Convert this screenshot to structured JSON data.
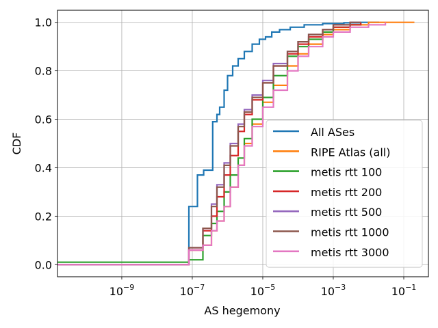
{
  "chart_data": {
    "type": "line",
    "title": "",
    "xlabel": "AS hegemony",
    "ylabel": "CDF",
    "x_scale": "log",
    "xlim": [
      1.5e-11,
      0.5
    ],
    "ylim": [
      -0.05,
      1.05
    ],
    "grid": true,
    "legend_position": "lower-right",
    "x_ticks": [
      {
        "value": 1e-09,
        "base": "10",
        "exp": "−9"
      },
      {
        "value": 1e-07,
        "base": "10",
        "exp": "−7"
      },
      {
        "value": 1e-05,
        "base": "10",
        "exp": "−5"
      },
      {
        "value": 0.001,
        "base": "10",
        "exp": "−3"
      },
      {
        "value": 0.1,
        "base": "10",
        "exp": "−1"
      }
    ],
    "y_ticks": [
      {
        "value": 0.0,
        "label": "0.0"
      },
      {
        "value": 0.2,
        "label": "0.2"
      },
      {
        "value": 0.4,
        "label": "0.4"
      },
      {
        "value": 0.6,
        "label": "0.6"
      },
      {
        "value": 0.8,
        "label": "0.8"
      },
      {
        "value": 1.0,
        "label": "1.0"
      }
    ],
    "series": [
      {
        "name": "All ASes",
        "color": "#1f77b4",
        "x": [
          1.5e-11,
          8e-08,
          8e-08,
          1.4e-07,
          1.4e-07,
          2.1e-07,
          2.1e-07,
          3.8e-07,
          3.8e-07,
          5e-07,
          6e-07,
          8e-07,
          1e-06,
          1.4e-06,
          2e-06,
          3e-06,
          5e-06,
          8e-06,
          1.2e-05,
          1.8e-05,
          3e-05,
          6e-05,
          0.00015,
          0.0005,
          0.002,
          0.006,
          0.02
        ],
        "y": [
          0.0,
          0.0,
          0.24,
          0.24,
          0.37,
          0.37,
          0.39,
          0.39,
          0.59,
          0.62,
          0.65,
          0.72,
          0.78,
          0.82,
          0.85,
          0.88,
          0.91,
          0.93,
          0.94,
          0.96,
          0.97,
          0.98,
          0.99,
          0.995,
          0.998,
          1.0,
          1.0
        ]
      },
      {
        "name": "RIPE Atlas (all)",
        "color": "#ff7f0e",
        "x": [
          1.5e-11,
          8e-08,
          8e-08,
          2e-07,
          3.5e-07,
          5e-07,
          8e-07,
          1.2e-06,
          2e-06,
          3e-06,
          5e-06,
          1e-05,
          2e-05,
          5e-05,
          0.0001,
          0.0002,
          0.0005,
          0.001,
          0.003,
          0.01,
          0.03,
          0.2
        ],
        "y": [
          0.0,
          0.0,
          0.06,
          0.08,
          0.14,
          0.18,
          0.24,
          0.32,
          0.41,
          0.5,
          0.58,
          0.67,
          0.74,
          0.82,
          0.87,
          0.91,
          0.95,
          0.97,
          0.99,
          1.0,
          1.0,
          1.0
        ]
      },
      {
        "name": "metis rtt 100",
        "color": "#2ca02c",
        "x": [
          1.5e-11,
          8e-08,
          8e-08,
          2e-07,
          2e-07,
          3.5e-07,
          5e-07,
          8e-07,
          1.2e-06,
          2e-06,
          3e-06,
          5e-06,
          1e-05,
          2e-05,
          5e-05,
          0.0001,
          0.0002,
          0.0005,
          0.001,
          0.003,
          0.006
        ],
        "y": [
          0.01,
          0.01,
          0.02,
          0.03,
          0.12,
          0.17,
          0.22,
          0.3,
          0.37,
          0.44,
          0.52,
          0.6,
          0.69,
          0.78,
          0.86,
          0.9,
          0.93,
          0.96,
          0.98,
          0.99,
          1.0
        ]
      },
      {
        "name": "metis rtt 200",
        "color": "#d62728",
        "x": [
          1.5e-11,
          8e-08,
          8e-08,
          2e-07,
          2e-07,
          3.5e-07,
          5e-07,
          8e-07,
          1.2e-06,
          2e-06,
          3e-06,
          5e-06,
          1e-05,
          2e-05,
          5e-05,
          0.0001,
          0.0002,
          0.0005,
          0.001,
          0.003,
          0.006
        ],
        "y": [
          0.0,
          0.0,
          0.06,
          0.07,
          0.14,
          0.2,
          0.28,
          0.37,
          0.45,
          0.55,
          0.62,
          0.68,
          0.75,
          0.82,
          0.87,
          0.91,
          0.94,
          0.97,
          0.98,
          0.99,
          1.0
        ]
      },
      {
        "name": "metis rtt 500",
        "color": "#9467bd",
        "x": [
          1.5e-11,
          8e-08,
          8e-08,
          2e-07,
          2e-07,
          3.5e-07,
          5e-07,
          8e-07,
          1.2e-06,
          2e-06,
          3e-06,
          5e-06,
          1e-05,
          2e-05,
          5e-05,
          0.0001,
          0.0002,
          0.0005,
          0.001,
          0.003,
          0.006
        ],
        "y": [
          0.0,
          0.0,
          0.07,
          0.08,
          0.15,
          0.25,
          0.33,
          0.42,
          0.5,
          0.58,
          0.64,
          0.7,
          0.76,
          0.83,
          0.88,
          0.92,
          0.95,
          0.97,
          0.99,
          1.0,
          1.0
        ]
      },
      {
        "name": "metis rtt 1000",
        "color": "#8c564b",
        "x": [
          1.5e-11,
          8e-08,
          8e-08,
          2e-07,
          2e-07,
          3.5e-07,
          5e-07,
          8e-07,
          1.2e-06,
          2e-06,
          3e-06,
          5e-06,
          1e-05,
          2e-05,
          5e-05,
          0.0001,
          0.0002,
          0.0005,
          0.001,
          0.003,
          0.006
        ],
        "y": [
          0.0,
          0.0,
          0.07,
          0.08,
          0.15,
          0.24,
          0.32,
          0.41,
          0.49,
          0.57,
          0.63,
          0.69,
          0.75,
          0.82,
          0.88,
          0.92,
          0.95,
          0.97,
          0.99,
          1.0,
          1.0
        ]
      },
      {
        "name": "metis rtt 3000",
        "color": "#e377c2",
        "x": [
          1.5e-11,
          8e-08,
          8e-08,
          2e-07,
          3.5e-07,
          5e-07,
          8e-07,
          1.2e-06,
          2e-06,
          3e-06,
          5e-06,
          1e-05,
          2e-05,
          5e-05,
          0.0001,
          0.0002,
          0.0005,
          0.001,
          0.003,
          0.01,
          0.03
        ],
        "y": [
          0.0,
          0.0,
          0.06,
          0.08,
          0.14,
          0.18,
          0.24,
          0.32,
          0.41,
          0.49,
          0.57,
          0.65,
          0.72,
          0.8,
          0.86,
          0.9,
          0.94,
          0.96,
          0.98,
          0.99,
          1.0
        ]
      }
    ]
  }
}
